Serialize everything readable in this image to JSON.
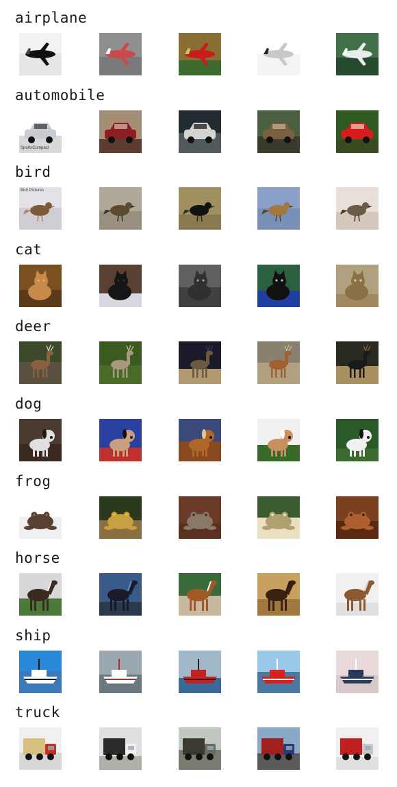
{
  "classes": [
    {
      "label": "airplane"
    },
    {
      "label": "automobile"
    },
    {
      "label": "bird"
    },
    {
      "label": "cat"
    },
    {
      "label": "deer"
    },
    {
      "label": "dog"
    },
    {
      "label": "frog"
    },
    {
      "label": "horse"
    },
    {
      "label": "ship"
    },
    {
      "label": "truck"
    }
  ],
  "thumbnails": [
    [
      {
        "name": "airplane-1",
        "sky": "#f2f2f2",
        "ground": "#e6e6e6",
        "subject": "#111111",
        "accent": "#444444"
      },
      {
        "name": "airplane-2",
        "sky": "#8f8f8f",
        "ground": "#7a7a7a",
        "subject": "#c94a4a",
        "accent": "#ffffff"
      },
      {
        "name": "airplane-3",
        "sky": "#8a6f35",
        "ground": "#3f6a2f",
        "subject": "#c91c1c",
        "accent": "#d9c060"
      },
      {
        "name": "airplane-4",
        "sky": "#ffffff",
        "ground": "#f4f4f4",
        "subject": "#c8c8c8",
        "accent": "#222222"
      },
      {
        "name": "airplane-5",
        "sky": "#3f7048",
        "ground": "#254a2d",
        "subject": "#e8ecea",
        "accent": "#ffffff"
      }
    ],
    [
      {
        "name": "automobile-1",
        "sky": "#ffffff",
        "ground": "#d8d8d8",
        "subject": "#c8ccd0",
        "accent": "#333333",
        "caption": "SportsCompact"
      },
      {
        "name": "automobile-2",
        "sky": "#a68e76",
        "ground": "#5b3c2e",
        "subject": "#8c1f26",
        "accent": "#d0c0b0"
      },
      {
        "name": "automobile-3",
        "sky": "#222c30",
        "ground": "#505a5c",
        "subject": "#d4d4d0",
        "accent": "#111111"
      },
      {
        "name": "automobile-4",
        "sky": "#4a5e40",
        "ground": "#3a3a2a",
        "subject": "#7a6040",
        "accent": "#c8b090"
      },
      {
        "name": "automobile-5",
        "sky": "#2e5a22",
        "ground": "#3a4a20",
        "subject": "#d81c1c",
        "accent": "#f0d0c0"
      }
    ],
    [
      {
        "name": "bird-1",
        "sky": "#e4e2e8",
        "ground": "#d0ced4",
        "subject": "#7a5a38",
        "accent": "#b08060",
        "caption": "Bird Pictures"
      },
      {
        "name": "bird-2",
        "sky": "#b0a898",
        "ground": "#9a9080",
        "subject": "#5a4a30",
        "accent": "#3a3020"
      },
      {
        "name": "bird-3",
        "sky": "#a09060",
        "ground": "#8a7850",
        "subject": "#111111",
        "accent": "#2a2a1a"
      },
      {
        "name": "bird-4",
        "sky": "#8aa0c8",
        "ground": "#7890b8",
        "subject": "#a07840",
        "accent": "#5a4020"
      },
      {
        "name": "bird-5",
        "sky": "#e8e0d8",
        "ground": "#d4c8bc",
        "subject": "#6a5a48",
        "accent": "#3a3028"
      }
    ],
    [
      {
        "name": "cat-1",
        "sky": "#7a5020",
        "ground": "#5a3a18",
        "subject": "#c88a48",
        "accent": "#e0b070"
      },
      {
        "name": "cat-2",
        "sky": "#5a4030",
        "ground": "#d8d8e0",
        "subject": "#151515",
        "accent": "#3a3030"
      },
      {
        "name": "cat-3",
        "sky": "#606060",
        "ground": "#404040",
        "subject": "#303030",
        "accent": "#a0a0a0"
      },
      {
        "name": "cat-4",
        "sky": "#2a6040",
        "ground": "#2040a0",
        "subject": "#111111",
        "accent": "#c0c0c0"
      },
      {
        "name": "cat-5",
        "sky": "#b0a080",
        "ground": "#a08860",
        "subject": "#8a7048",
        "accent": "#e0d0a0"
      }
    ],
    [
      {
        "name": "deer-1",
        "sky": "#3a4a2a",
        "ground": "#5a5040",
        "subject": "#8a6040",
        "accent": "#d8d0c0"
      },
      {
        "name": "deer-2",
        "sky": "#3a5a20",
        "ground": "#4a6a28",
        "subject": "#a89880",
        "accent": "#c8b8a0"
      },
      {
        "name": "deer-3",
        "sky": "#1a1a2a",
        "ground": "#b09870",
        "subject": "#6a5a40",
        "accent": "#3a3a4a"
      },
      {
        "name": "deer-4",
        "sky": "#8a8070",
        "ground": "#b0a080",
        "subject": "#a06030",
        "accent": "#d0b890"
      },
      {
        "name": "deer-5",
        "sky": "#2a2a20",
        "ground": "#a89060",
        "subject": "#1a1a1a",
        "accent": "#7a6040"
      }
    ],
    [
      {
        "name": "dog-1",
        "sky": "#4a3a30",
        "ground": "#3a2a20",
        "subject": "#e0e0e0",
        "accent": "#1a1a1a"
      },
      {
        "name": "dog-2",
        "sky": "#2a40a0",
        "ground": "#c03030",
        "subject": "#c8a080",
        "accent": "#111111"
      },
      {
        "name": "dog-3",
        "sky": "#3a4a7a",
        "ground": "#8a4a20",
        "subject": "#b06828",
        "accent": "#e0c8a0"
      },
      {
        "name": "dog-4",
        "sky": "#f0f0f0",
        "ground": "#3a6a2a",
        "subject": "#c89060",
        "accent": "#ffffff"
      },
      {
        "name": "dog-5",
        "sky": "#2a5a2a",
        "ground": "#3a6a30",
        "subject": "#f0f0f0",
        "accent": "#111111"
      }
    ],
    [
      {
        "name": "frog-1",
        "sky": "#ffffff",
        "ground": "#f0f0f0",
        "subject": "#5a4030",
        "accent": "#8a7050"
      },
      {
        "name": "frog-2",
        "sky": "#2a3a1a",
        "ground": "#8a7040",
        "subject": "#c8a040",
        "accent": "#e0c020"
      },
      {
        "name": "frog-3",
        "sky": "#6a3a28",
        "ground": "#5a3020",
        "subject": "#8a7868",
        "accent": "#3a2a20"
      },
      {
        "name": "frog-4",
        "sky": "#3a5a30",
        "ground": "#e8e0c0",
        "subject": "#b0a070",
        "accent": "#f0e8c8"
      },
      {
        "name": "frog-5",
        "sky": "#7a4020",
        "ground": "#5a2a10",
        "subject": "#b06030",
        "accent": "#2a1a10"
      }
    ],
    [
      {
        "name": "horse-1",
        "sky": "#d8d8d8",
        "ground": "#4a7a3a",
        "subject": "#3a2a20",
        "accent": "#f0f0f0"
      },
      {
        "name": "horse-2",
        "sky": "#3a5a8a",
        "ground": "#2a3a4a",
        "subject": "#1a1a2a",
        "accent": "#6090c0"
      },
      {
        "name": "horse-3",
        "sky": "#3a6a3a",
        "ground": "#c8b8a0",
        "subject": "#a05a28",
        "accent": "#ffffff"
      },
      {
        "name": "horse-4",
        "sky": "#c8a060",
        "ground": "#a07840",
        "subject": "#3a2010",
        "accent": "#202020"
      },
      {
        "name": "horse-5",
        "sky": "#f0f0f0",
        "ground": "#e0e0e0",
        "subject": "#8a5a30",
        "accent": "#d8c8b8"
      }
    ],
    [
      {
        "name": "ship-1",
        "sky": "#2a88d8",
        "ground": "#3a7ab8",
        "subject": "#ffffff",
        "accent": "#1a1a1a"
      },
      {
        "name": "ship-2",
        "sky": "#9aa8b0",
        "ground": "#6a7880",
        "subject": "#ffffff",
        "accent": "#d02020"
      },
      {
        "name": "ship-3",
        "sky": "#a0b8c8",
        "ground": "#3a6a9a",
        "subject": "#c82020",
        "accent": "#222222"
      },
      {
        "name": "ship-4",
        "sky": "#9ac8e8",
        "ground": "#4a7aa0",
        "subject": "#d82020",
        "accent": "#ffffff"
      },
      {
        "name": "ship-5",
        "sky": "#e8d8d8",
        "ground": "#d8c8c8",
        "subject": "#2a3a5a",
        "accent": "#ffffff"
      }
    ],
    [
      {
        "name": "truck-1",
        "sky": "#f0f0f0",
        "ground": "#d8d8d8",
        "subject": "#c83020",
        "accent": "#d8c080"
      },
      {
        "name": "truck-2",
        "sky": "#e0e0e0",
        "ground": "#b0b0a8",
        "subject": "#f0f0f0",
        "accent": "#2a2a2a"
      },
      {
        "name": "truck-3",
        "sky": "#c0c8c0",
        "ground": "#7a7a70",
        "subject": "#6a6a60",
        "accent": "#3a3a30"
      },
      {
        "name": "truck-4",
        "sky": "#8aa8c8",
        "ground": "#5a5a5a",
        "subject": "#2a3a7a",
        "accent": "#a02020"
      },
      {
        "name": "truck-5",
        "sky": "#f0f0f0",
        "ground": "#e0e0e0",
        "subject": "#c8c8c8",
        "accent": "#c02020"
      }
    ]
  ]
}
